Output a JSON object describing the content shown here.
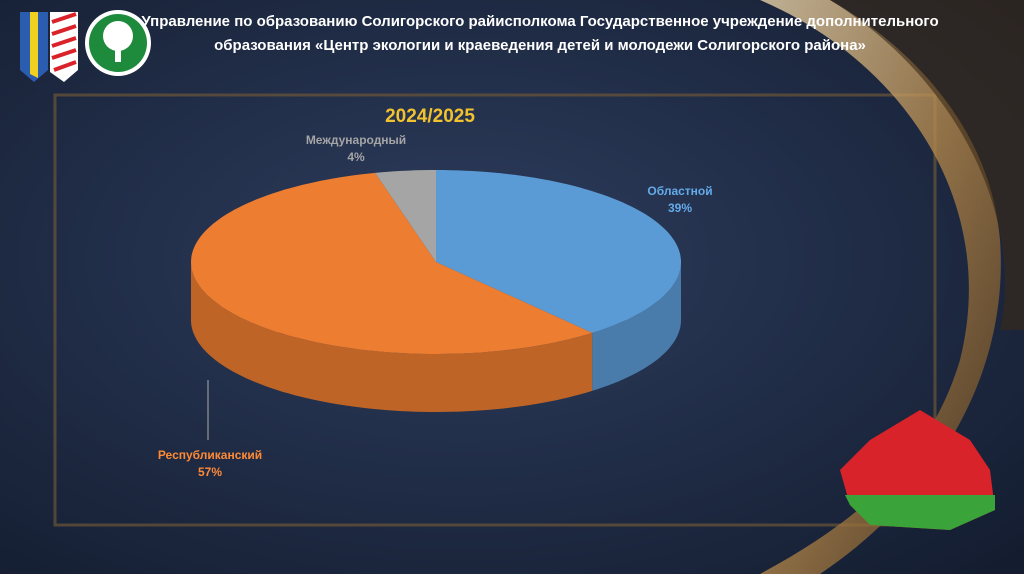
{
  "header": {
    "line1": "Управление по образованию Солигорского райисполкома  Государственное учреждение дополнительного",
    "line2": "образования «Центр экологии и краеведения детей и молодежи Солигорского района»"
  },
  "chart_data": {
    "type": "pie",
    "title": "2024/2025",
    "categories": [
      "Областной",
      "Республиканский",
      "Международный"
    ],
    "values": [
      39,
      57,
      4
    ],
    "value_labels": [
      "39%",
      "57%",
      "4%"
    ],
    "colors": [
      "#5b9bd5",
      "#ed7d31",
      "#a5a5a5"
    ]
  }
}
